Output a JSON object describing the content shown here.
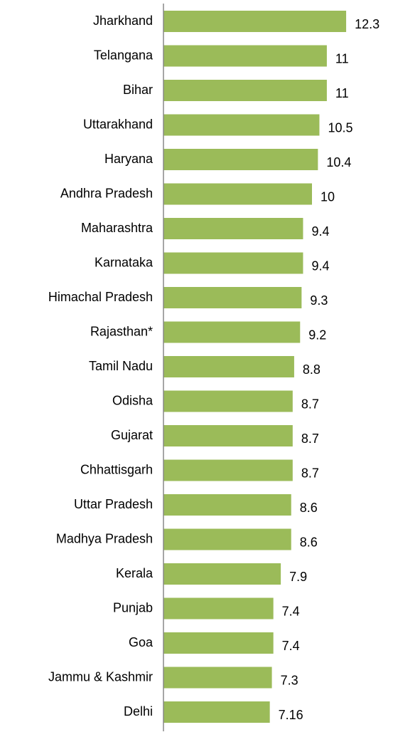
{
  "chart_data": {
    "type": "bar",
    "orientation": "horizontal",
    "color": "#9bbb59",
    "categories": [
      "Jharkhand",
      "Telangana",
      "Bihar",
      "Uttarakhand",
      "Haryana",
      "Andhra Pradesh",
      "Maharashtra",
      "Karnataka",
      "Himachal Pradesh",
      "Rajasthan*",
      "Tamil Nadu",
      "Odisha",
      "Gujarat",
      "Chhattisgarh",
      "Uttar Pradesh",
      "Madhya Pradesh",
      "Kerala",
      "Punjab",
      "Goa",
      "Jammu & Kashmir",
      "Delhi"
    ],
    "values": [
      12.3,
      11,
      11,
      10.5,
      10.4,
      10,
      9.4,
      9.4,
      9.3,
      9.2,
      8.8,
      8.7,
      8.7,
      8.7,
      8.6,
      8.6,
      7.9,
      7.4,
      7.4,
      7.3,
      7.16
    ]
  }
}
